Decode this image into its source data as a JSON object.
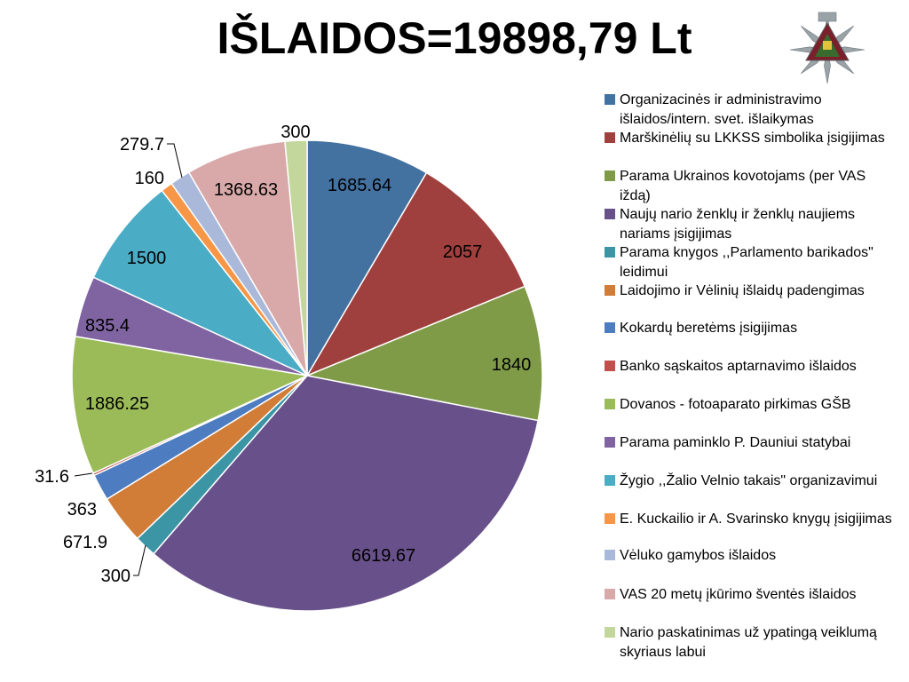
{
  "title": "IŠLAIDOS=19898,79 Lt",
  "logo": {
    "icon": "lkkss-emblem-icon",
    "colors": [
      "#9aa3a8",
      "#7a1f2b",
      "#e2c33c",
      "#3a6b2e"
    ]
  },
  "chart_data": {
    "type": "pie",
    "title": "IŠLAIDOS=19898,79 Lt",
    "legend_position": "right",
    "start": "top",
    "direction": "clockwise",
    "slices": [
      {
        "label": "Organizacinės ir administravimo išlaidos/intern. svet. išlaikymas",
        "value": 1685.64,
        "display": "1685.64",
        "color": "#4472a0"
      },
      {
        "label": "Marškinėlių su LKKSS simbolika įsigijimas",
        "value": 2057,
        "display": "2057",
        "color": "#a0403e"
      },
      {
        "label": "Parama Ukrainos kovotojams (per VAS iždą)",
        "value": 1840,
        "display": "1840",
        "color": "#7f9b47"
      },
      {
        "label": "Naujų nario ženklų ir ženklų naujiems nariams įsigijimas",
        "value": 6619.67,
        "display": "6619.67",
        "color": "#68508a"
      },
      {
        "label": "Parama knygos ,,Parlamento barikados\" leidimui",
        "value": 300,
        "display": "300",
        "color": "#3b95a5"
      },
      {
        "label": "Laidojimo ir Vėlinių išlaidų padengimas",
        "value": 671.9,
        "display": "671.9",
        "color": "#d17c37"
      },
      {
        "label": "Kokardų beretėms įsigijimas",
        "value": 363,
        "display": "363",
        "color": "#4d7cc1"
      },
      {
        "label": "Banko sąskaitos aptarnavimo išlaidos",
        "value": 31.6,
        "display": "31.6",
        "color": "#c24f4c"
      },
      {
        "label": "Dovanos - fotoaparato pirkimas GŠB",
        "value": 1886.25,
        "display": "1886.25",
        "color": "#9bbb59"
      },
      {
        "label": "Parama paminklo P. Dauniui statybai",
        "value": 835.4,
        "display": "835.4",
        "color": "#8064a2"
      },
      {
        "label": "Žygio ,,Žalio Velnio takais\" organizavimui",
        "value": 1500,
        "display": "1500",
        "color": "#4bacc6"
      },
      {
        "label": "E. Kuckailio ir A. Svarinsko knygų įsigijimas",
        "value": 160,
        "display": "160",
        "color": "#f79646"
      },
      {
        "label": "Vėluko gamybos išlaidos",
        "value": 279.7,
        "display": "279.7",
        "color": "#aab9da"
      },
      {
        "label": "VAS 20 metų įkūrimo šventės išlaidos",
        "value": 1368.63,
        "display": "1368.63",
        "color": "#d9a9a9"
      },
      {
        "label": "Nario paskatinimas už ypatingą veiklumą skyriaus labui",
        "value": 300,
        "display": "300",
        "color": "#c3d69b"
      }
    ]
  }
}
